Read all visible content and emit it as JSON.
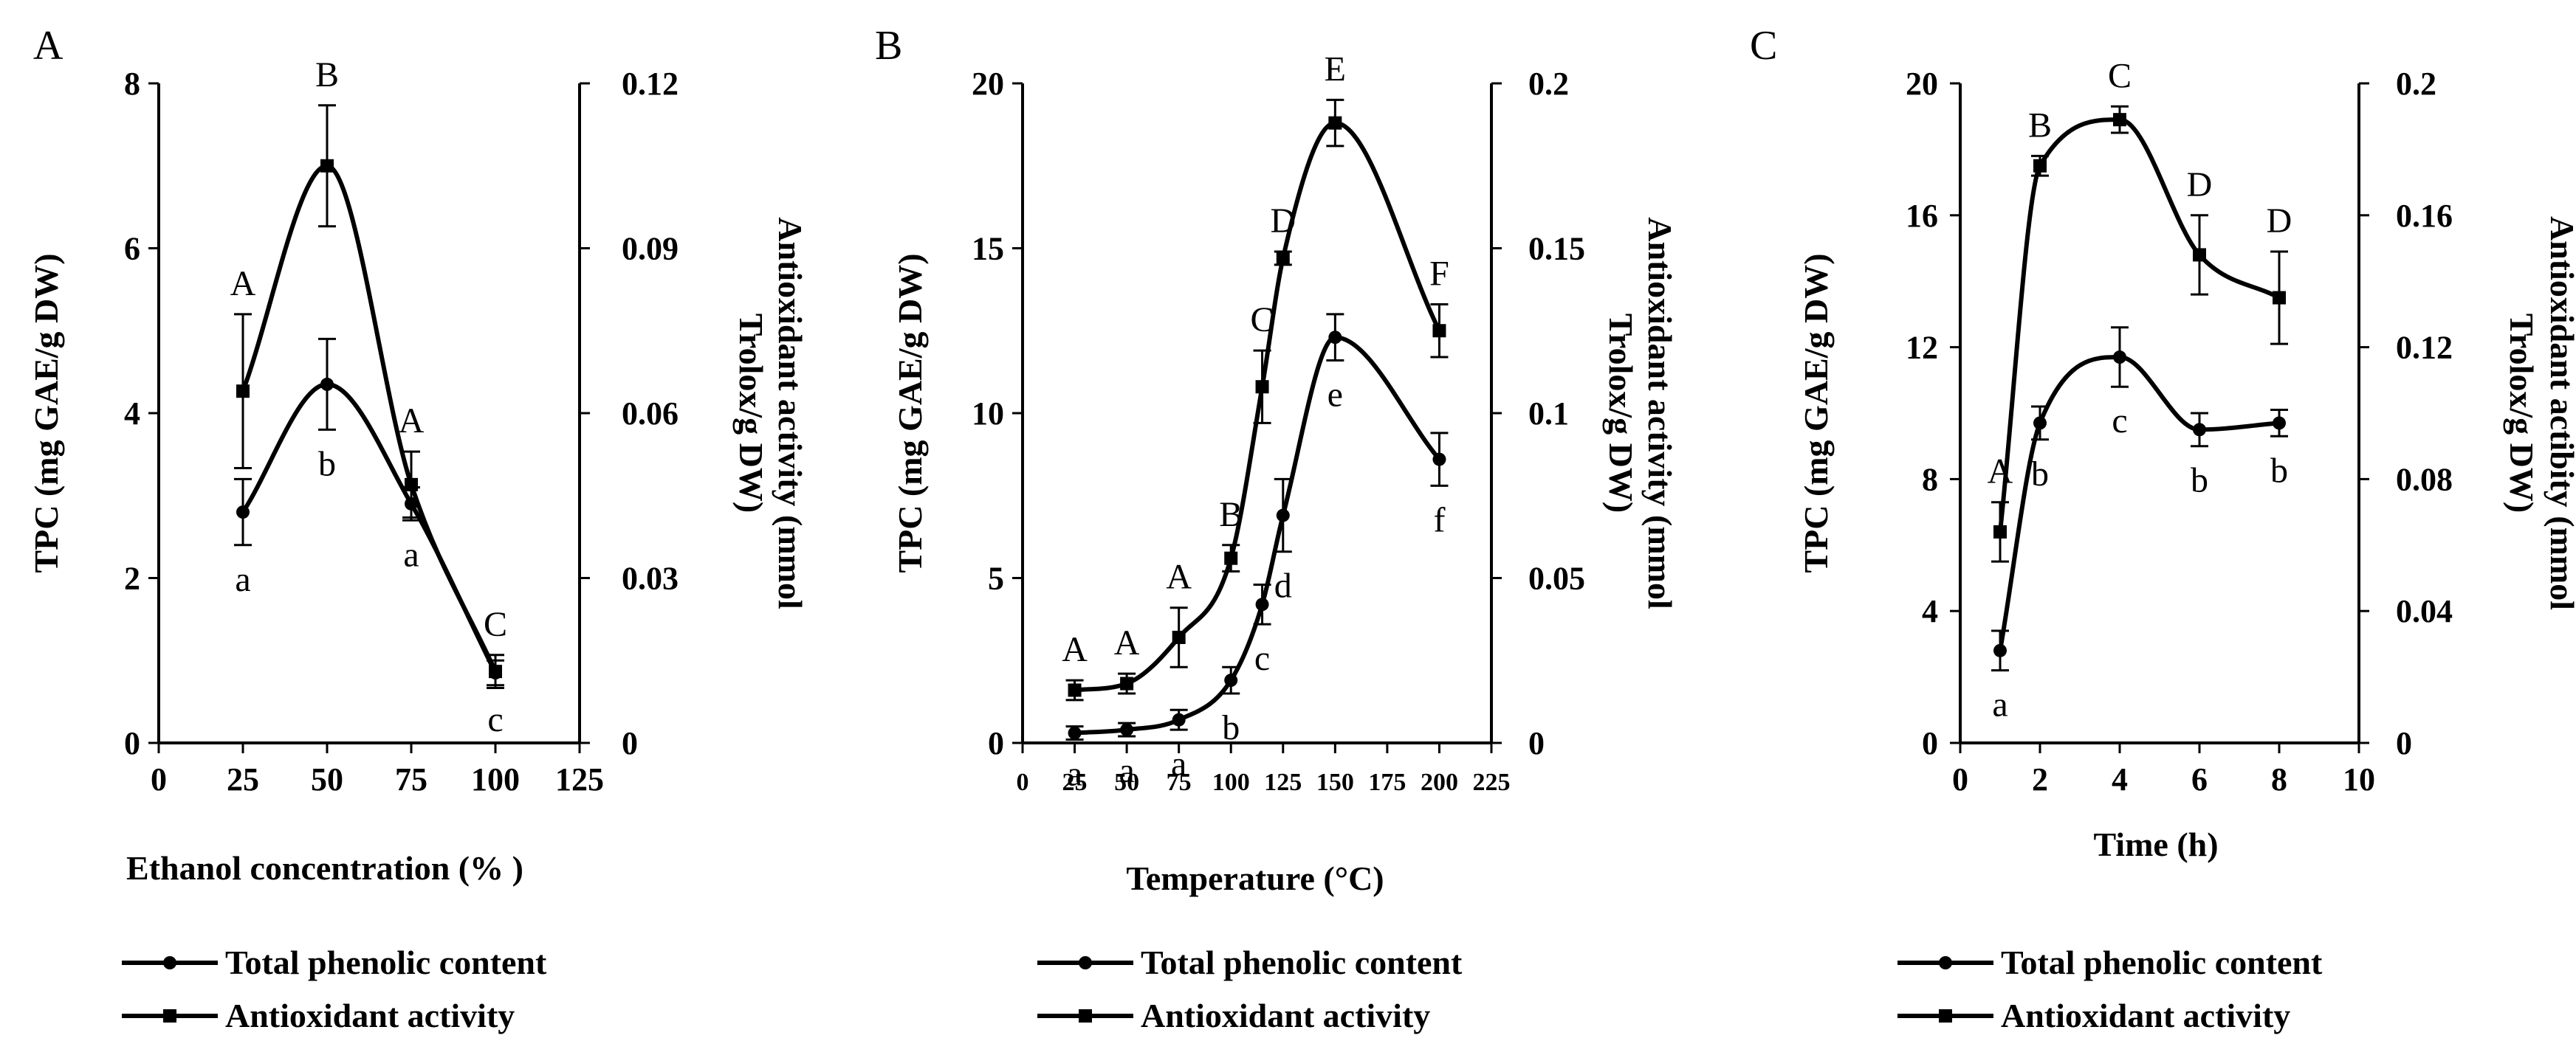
{
  "chart_data": [
    {
      "type": "line",
      "panel_label": "A",
      "xlabel": "Ethanol   concentration (% )",
      "ylabel_left": "TPC (mg GAE/g DW)",
      "ylabel_right_line1": "Antioxidant activity (mmol",
      "ylabel_right_line2": "Trolox/g  DW)",
      "xlim": [
        0,
        125
      ],
      "xticks": [
        "0",
        "25",
        "50",
        "75",
        "100",
        "125"
      ],
      "ylim_left": [
        0,
        8
      ],
      "yticks_left": [
        "0",
        "2",
        "4",
        "6",
        "8"
      ],
      "ylim_right": [
        0,
        0.12
      ],
      "yticks_right": [
        "0",
        "0.03",
        "0.06",
        "0.09",
        "0.12"
      ],
      "series": [
        {
          "name": "Total phenolic content",
          "axis": "left",
          "marker": "circle",
          "x": [
            25,
            50,
            75,
            100
          ],
          "values": [
            2.8,
            4.35,
            2.9,
            0.85
          ],
          "errors": [
            0.4,
            0.55,
            0.2,
            0.15
          ],
          "letters": [
            "a",
            "b",
            "a",
            "c"
          ]
        },
        {
          "name": "Antioxidant activity",
          "axis": "right",
          "marker": "square",
          "x": [
            25,
            50,
            75,
            100
          ],
          "values": [
            0.064,
            0.105,
            0.047,
            0.013
          ],
          "errors": [
            0.014,
            0.011,
            0.006,
            0.003
          ],
          "letters": [
            "A",
            "B",
            "A",
            "C"
          ]
        }
      ],
      "legend": [
        "Total phenolic content",
        "Antioxidant activity"
      ]
    },
    {
      "type": "line",
      "panel_label": "B",
      "xlabel": "Temperature (°C)",
      "ylabel_left": "TPC (mg GAE/g  DW)",
      "ylabel_right_line1": "Antioxidant activity (mmol",
      "ylabel_right_line2": "Trolox/g  DW)",
      "xlim": [
        0,
        225
      ],
      "xticks": [
        "0",
        "25",
        "50",
        "75",
        "100",
        "125",
        "150",
        "175",
        "200",
        "225"
      ],
      "ylim_left": [
        0,
        20
      ],
      "yticks_left": [
        "0",
        "5",
        "10",
        "15",
        "20"
      ],
      "ylim_right": [
        0,
        0.2
      ],
      "yticks_right": [
        "0",
        "0.05",
        "0.1",
        "0.15",
        "0.2"
      ],
      "series": [
        {
          "name": "Total phenolic content",
          "axis": "left",
          "marker": "circle",
          "x": [
            25,
            50,
            75,
            100,
            115,
            125,
            150,
            200
          ],
          "values": [
            0.3,
            0.4,
            0.7,
            1.9,
            4.2,
            6.9,
            12.3,
            8.6
          ],
          "errors": [
            0.2,
            0.2,
            0.3,
            0.4,
            0.6,
            1.1,
            0.7,
            0.8
          ],
          "letters": [
            "a",
            "a",
            "a",
            "b",
            "c",
            "d",
            "e",
            "f"
          ]
        },
        {
          "name": "Antioxidant activity",
          "axis": "right",
          "marker": "square",
          "x": [
            25,
            50,
            75,
            100,
            115,
            125,
            150,
            200
          ],
          "values": [
            0.016,
            0.018,
            0.032,
            0.056,
            0.108,
            0.147,
            0.188,
            0.125
          ],
          "errors": [
            0.003,
            0.003,
            0.009,
            0.004,
            0.011,
            0.002,
            0.007,
            0.008
          ],
          "letters": [
            "A",
            "A",
            "A",
            "B",
            "C",
            "D",
            "E",
            "F"
          ]
        }
      ],
      "legend": [
        "Total phenolic content",
        "Antioxidant activity"
      ]
    },
    {
      "type": "line",
      "panel_label": "C",
      "xlabel": "Time (h)",
      "ylabel_left": "TPC (mg GAE/g  DW)",
      "ylabel_right_line1": "Antioxidant actibity (mmol",
      "ylabel_right_line2": "Trolox/g DW)",
      "xlim": [
        0,
        10
      ],
      "xticks": [
        "0",
        "2",
        "4",
        "6",
        "8",
        "10"
      ],
      "ylim_left": [
        0,
        20
      ],
      "yticks_left": [
        "0",
        "4",
        "8",
        "12",
        "16",
        "20"
      ],
      "ylim_right": [
        0,
        0.2
      ],
      "yticks_right": [
        "0",
        "0.04",
        "0.08",
        "0.12",
        "0.16",
        "0.2"
      ],
      "series": [
        {
          "name": "Total phenolic content",
          "axis": "left",
          "marker": "circle",
          "x": [
            1,
            2,
            4,
            6,
            8
          ],
          "values": [
            2.8,
            9.7,
            11.7,
            9.5,
            9.7
          ],
          "errors": [
            0.6,
            0.5,
            0.9,
            0.5,
            0.4
          ],
          "letters": [
            "a",
            "b",
            "c",
            "b",
            "b"
          ]
        },
        {
          "name": "Antioxidant activity",
          "axis": "right",
          "marker": "square",
          "x": [
            1,
            2,
            4,
            6,
            8
          ],
          "values": [
            0.064,
            0.175,
            0.189,
            0.148,
            0.135
          ],
          "errors": [
            0.009,
            0.003,
            0.004,
            0.012,
            0.014
          ],
          "letters": [
            "A",
            "B",
            "C",
            "D",
            "D"
          ]
        }
      ],
      "legend": [
        "Total phenolic content",
        "Antioxidant activity"
      ]
    }
  ]
}
